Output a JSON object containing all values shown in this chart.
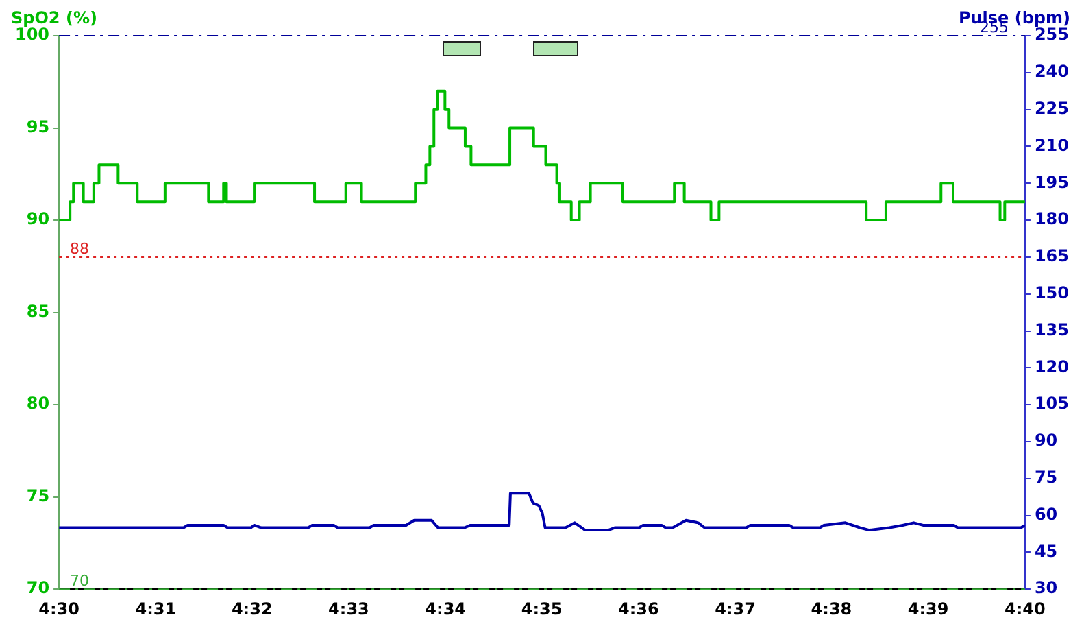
{
  "chart_data": {
    "type": "line",
    "ylabel": "SpO2 (%)",
    "y2label": "Pulse (bpm)",
    "xlim": [
      4.5,
      4.6667
    ],
    "xticks": [
      {
        "value": 4.5,
        "label": "4:30"
      },
      {
        "value": 4.5167,
        "label": "4:31"
      },
      {
        "value": 4.5333,
        "label": "4:32"
      },
      {
        "value": 4.55,
        "label": "4:33"
      },
      {
        "value": 4.5667,
        "label": "4:34"
      },
      {
        "value": 4.5833,
        "label": "4:35"
      },
      {
        "value": 4.6,
        "label": "4:36"
      },
      {
        "value": 4.6167,
        "label": "4:37"
      },
      {
        "value": 4.6333,
        "label": "4:38"
      },
      {
        "value": 4.65,
        "label": "4:39"
      },
      {
        "value": 4.6667,
        "label": "4:40"
      }
    ],
    "ylim": [
      70,
      100
    ],
    "yticks": [
      70,
      75,
      80,
      85,
      90,
      95,
      100
    ],
    "y2lim": [
      30,
      255
    ],
    "y2ticks": [
      30,
      45,
      60,
      75,
      90,
      105,
      120,
      135,
      150,
      165,
      180,
      195,
      210,
      225,
      240,
      255
    ],
    "grid": false,
    "legend": false,
    "marker": "none",
    "line_style": "solid",
    "series": [
      {
        "type": "step",
        "color": "#00bb00",
        "x": [
          4.5,
          4.5019,
          4.5025,
          4.5042,
          4.506,
          4.5069,
          4.5102,
          4.5135,
          4.5183,
          4.5258,
          4.5284,
          4.5289,
          4.5337,
          4.5441,
          4.5495,
          4.5522,
          4.5615,
          4.5633,
          4.564,
          4.5647,
          4.5653,
          4.5666,
          4.5673,
          4.5701,
          4.5711,
          4.5778,
          4.5819,
          4.584,
          4.5859,
          4.5863,
          4.5884,
          4.5898,
          4.5917,
          4.5973,
          4.6062,
          4.6079,
          4.6125,
          4.6139,
          4.6393,
          4.6427,
          4.6522,
          4.6543,
          4.6624,
          4.6632,
          4.6667
        ],
        "values": [
          90,
          91,
          92,
          91,
          92,
          93,
          92,
          91,
          92,
          91,
          92,
          91,
          92,
          91,
          92,
          91,
          92,
          93,
          94,
          96,
          97,
          96,
          95,
          94,
          93,
          95,
          94,
          93,
          92,
          91,
          90,
          91,
          92,
          91,
          92,
          91,
          90,
          91,
          90,
          91,
          92,
          91,
          90,
          91,
          91
        ]
      },
      {
        "type": "line",
        "axis": "y2",
        "color": "#0000aa",
        "x": [
          4.5,
          4.5046,
          4.5215,
          4.5222,
          4.5284,
          4.5291,
          4.5331,
          4.5337,
          4.5349,
          4.543,
          4.5437,
          4.5474,
          4.5481,
          4.5536,
          4.5543,
          4.5599,
          4.5613,
          4.5643,
          4.5654,
          4.57,
          4.571,
          4.5777,
          4.5779,
          4.5811,
          4.5818,
          4.5828,
          4.5834,
          4.5839,
          4.5874,
          4.589,
          4.5908,
          4.5948,
          4.5959,
          4.6001,
          4.6008,
          4.604,
          4.6047,
          4.6059,
          4.6082,
          4.6103,
          4.6114,
          4.6186,
          4.6193,
          4.626,
          4.6267,
          4.6313,
          4.632,
          4.6357,
          4.6382,
          4.6398,
          4.6433,
          4.6456,
          4.6475,
          4.6491,
          4.6544,
          4.6551,
          4.666,
          4.6667
        ],
        "values": [
          55,
          55,
          55,
          56,
          56,
          55,
          55,
          56,
          55,
          55,
          56,
          56,
          55,
          55,
          56,
          56,
          58,
          58,
          55,
          55,
          56,
          56,
          69,
          69,
          65,
          64,
          61,
          55,
          55,
          57,
          54,
          54,
          55,
          55,
          56,
          56,
          55,
          55,
          58,
          57,
          55,
          55,
          56,
          56,
          55,
          55,
          56,
          57,
          55,
          54,
          55,
          56,
          57,
          56,
          56,
          55,
          55,
          56
        ]
      }
    ],
    "ref_lines": [
      {
        "axis": "y",
        "value": 88,
        "label": "88",
        "color": "#dd2222",
        "line_style": "dotted"
      },
      {
        "axis": "y2",
        "value": 255,
        "label": "255",
        "color": "#000099",
        "line_style": "dashed"
      },
      {
        "axis": "y",
        "value": 70,
        "label": "70",
        "color": "#33aa33",
        "line_style": "dashed"
      }
    ]
  }
}
